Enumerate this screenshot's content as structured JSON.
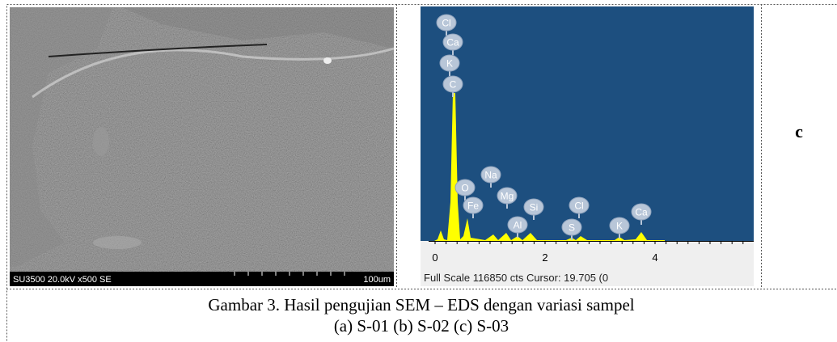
{
  "sem_image": {
    "info": "SU3500 20.0kV x500 SE",
    "scale": "100um"
  },
  "eds_spectrum": {
    "peak_labels": [
      "Cl",
      "Ca",
      "K",
      "C",
      "O",
      "Na",
      "Fe",
      "Mg",
      "Si",
      "Al",
      "Cl",
      "S",
      "K",
      "Ca"
    ],
    "axis_labels": [
      "0",
      "2",
      "4"
    ],
    "footer": "Full Scale 116850 cts Cursor: 19.705 (0"
  },
  "panel_label": "c",
  "caption": {
    "line1": "Gambar 3.  Hasil pengujian SEM – EDS dengan variasi sampel",
    "line2": "(a) S-01 (b) S-02 (c) S-03"
  }
}
